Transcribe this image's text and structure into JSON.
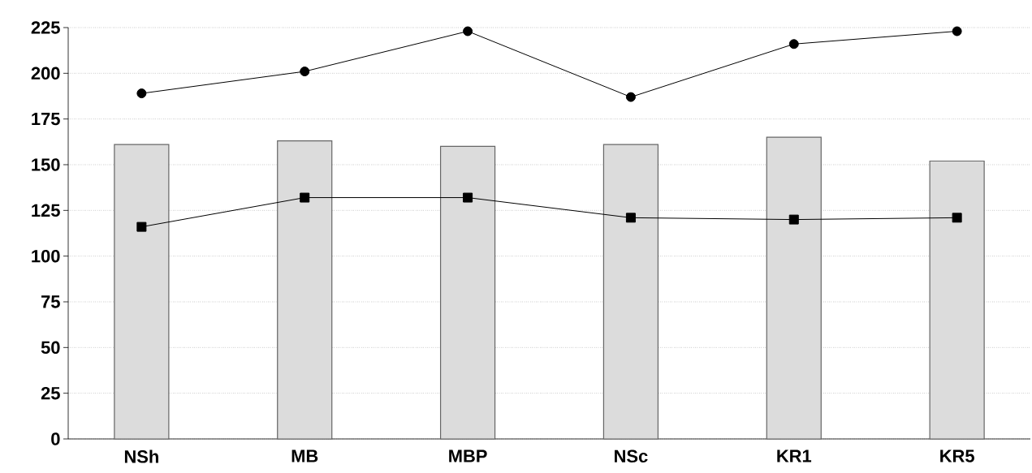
{
  "chart_data": {
    "type": "bar",
    "categories": [
      "NSh",
      "MB",
      "MBP",
      "NSc",
      "KR1",
      "KR5"
    ],
    "series": [
      {
        "color": "#dcdcdc",
        "values": [
          161,
          163,
          160,
          161,
          165,
          152
        ]
      },
      {
        "type": "line",
        "color": "#000000",
        "marker": "circle",
        "values": [
          189,
          201,
          223,
          187,
          216,
          223
        ]
      },
      {
        "type": "line",
        "color": "#000000",
        "marker": "square",
        "values": [
          116,
          132,
          132,
          121,
          120,
          121
        ]
      }
    ],
    "ylim": [
      0,
      225
    ],
    "yticks": [
      0,
      25,
      50,
      75,
      100,
      125,
      150,
      175,
      200,
      225
    ],
    "grid": "y"
  }
}
